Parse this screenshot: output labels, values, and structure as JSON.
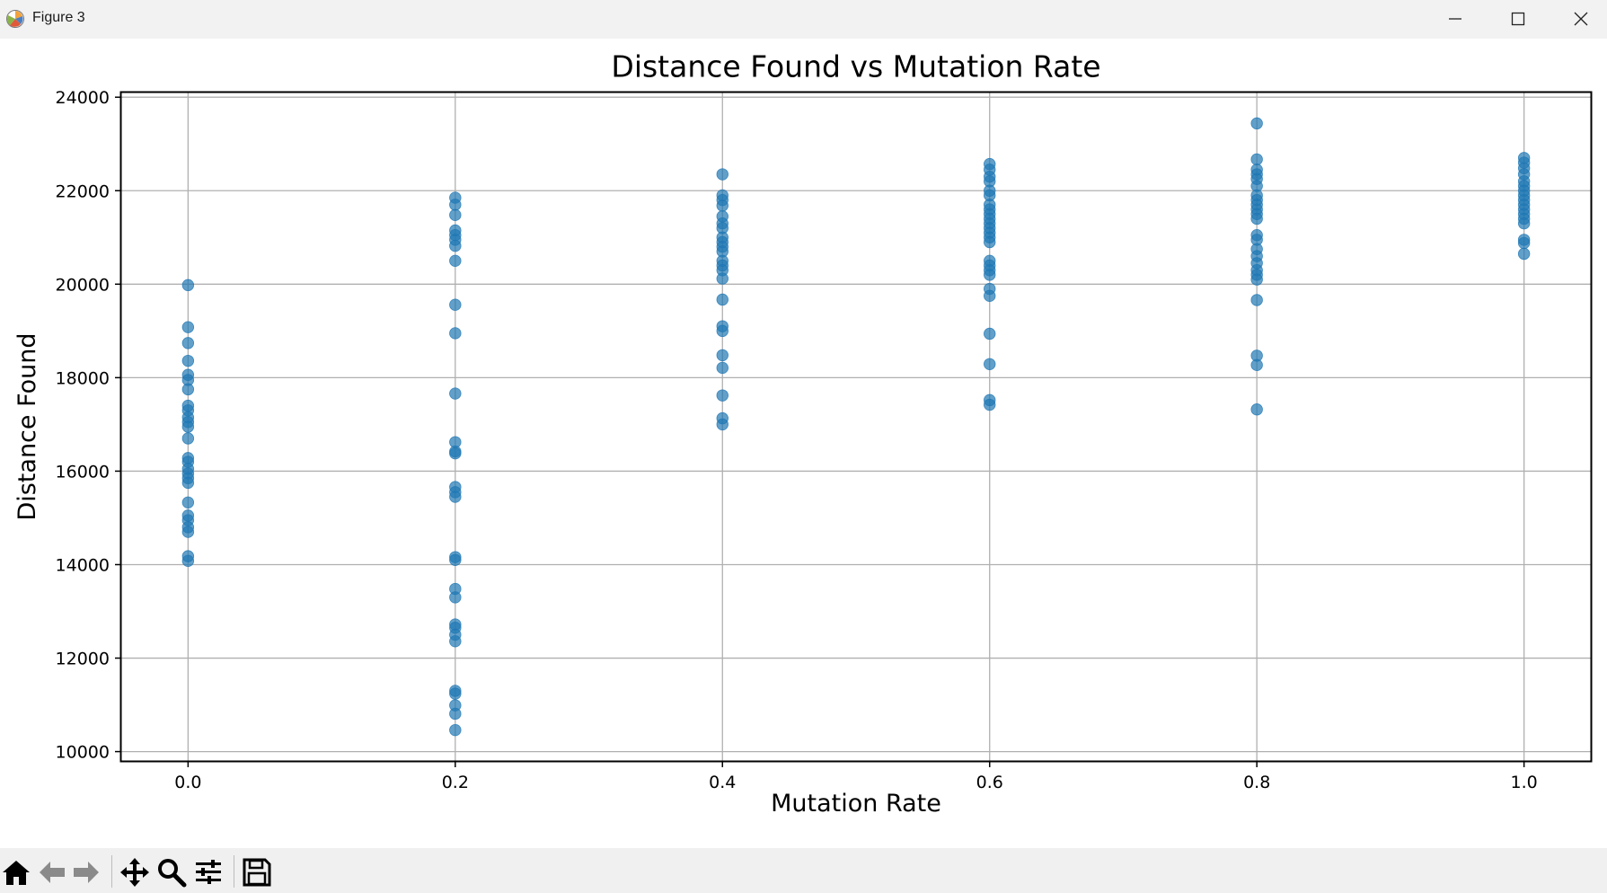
{
  "window": {
    "title": "Figure 3",
    "app_icon": "matplotlib-icon",
    "controls": [
      "minimize-icon",
      "maximize-icon",
      "close-icon"
    ]
  },
  "toolbar": {
    "buttons": [
      "home-icon",
      "back-arrow-icon",
      "forward-arrow-icon",
      "pan-icon",
      "zoom-icon",
      "configure-subplots-icon",
      "save-icon"
    ]
  },
  "chart_data": {
    "type": "scatter",
    "title": "Distance Found vs Mutation Rate",
    "xlabel": "Mutation Rate",
    "ylabel": "Distance Found",
    "xlim": [
      -0.05,
      1.05
    ],
    "ylim": [
      9800,
      24100
    ],
    "xticks": [
      "0.0",
      "0.2",
      "0.4",
      "0.6",
      "0.8",
      "1.0"
    ],
    "yticks": [
      "10000",
      "12000",
      "14000",
      "16000",
      "18000",
      "20000",
      "22000",
      "24000"
    ],
    "grid": true,
    "color": "#1f77b4",
    "point_alpha": 0.7,
    "series": [
      {
        "x": 0.0,
        "y": [
          19980,
          19080,
          18740,
          18360,
          18060,
          17950,
          17750,
          17400,
          17300,
          17150,
          17050,
          16950,
          16700,
          16280,
          16200,
          16050,
          15950,
          15850,
          15750,
          15330,
          15050,
          14950,
          14800,
          14700,
          14180,
          14080
        ]
      },
      {
        "x": 0.2,
        "y": [
          21850,
          21700,
          21480,
          21150,
          21050,
          20950,
          20820,
          20500,
          19560,
          18950,
          17660,
          16620,
          16420,
          16380,
          15660,
          15550,
          15450,
          14160,
          14100,
          13480,
          13300,
          12720,
          12650,
          12500,
          12360,
          11300,
          11240,
          10990,
          10810,
          10460
        ]
      },
      {
        "x": 0.4,
        "y": [
          22350,
          21900,
          21800,
          21680,
          21450,
          21300,
          21200,
          21000,
          20900,
          20800,
          20700,
          20500,
          20400,
          20300,
          20120,
          19670,
          19100,
          19000,
          18480,
          18210,
          17620,
          17130,
          17000
        ]
      },
      {
        "x": 0.6,
        "y": [
          22570,
          22450,
          22300,
          22200,
          22000,
          21900,
          21700,
          21600,
          21500,
          21400,
          21300,
          21200,
          21100,
          21000,
          20900,
          20500,
          20400,
          20300,
          20200,
          19900,
          19750,
          18940,
          18290,
          17520,
          17420
        ]
      },
      {
        "x": 0.8,
        "y": [
          23440,
          22670,
          22450,
          22350,
          22250,
          22100,
          21900,
          21800,
          21700,
          21600,
          21500,
          21400,
          21050,
          20950,
          20750,
          20600,
          20450,
          20300,
          20200,
          20100,
          19660,
          18470,
          18270,
          17320
        ]
      },
      {
        "x": 1.0,
        "y": [
          22700,
          22600,
          22480,
          22350,
          22200,
          22100,
          22000,
          21900,
          21800,
          21700,
          21600,
          21500,
          21400,
          21300,
          20950,
          20880,
          20650
        ]
      }
    ]
  }
}
